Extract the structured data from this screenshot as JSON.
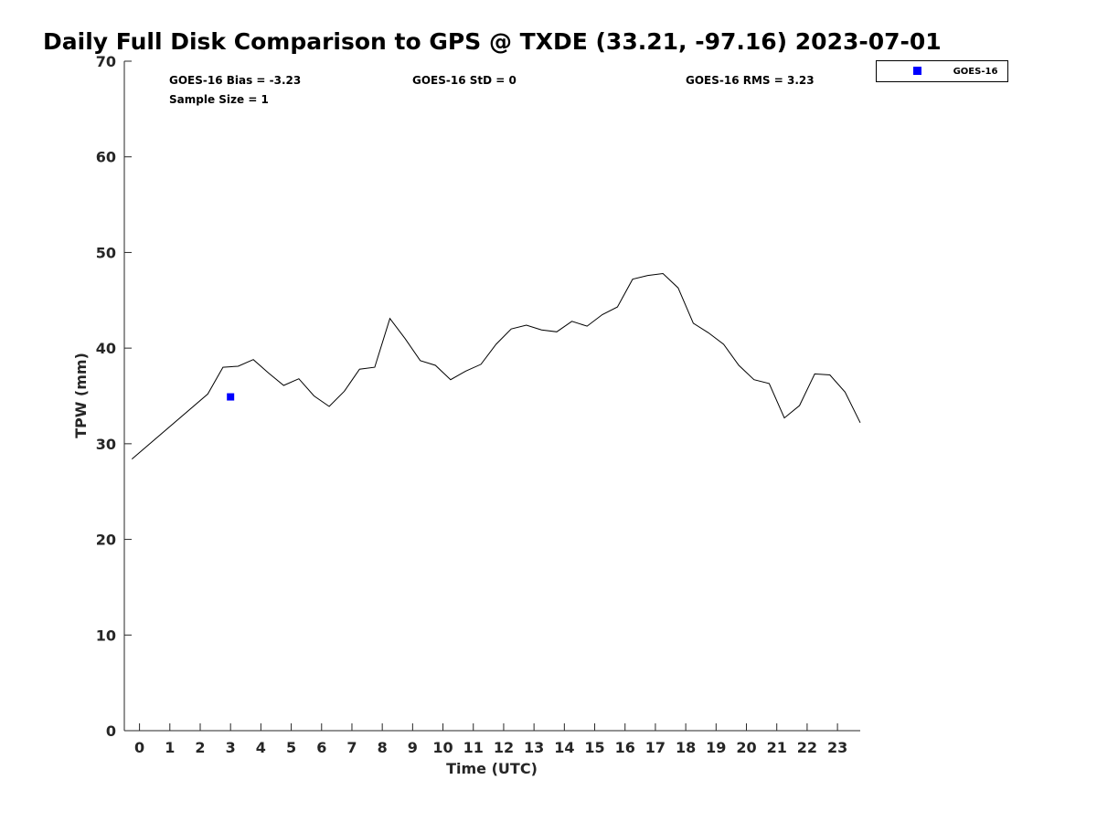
{
  "chart_data": {
    "type": "line",
    "title": "Daily Full Disk Comparison to GPS @ TXDE (33.21, -97.16) 2023-07-01",
    "xlabel": "Time (UTC)",
    "ylabel": "TPW (mm)",
    "xlim": [
      -0.5,
      23.75
    ],
    "ylim": [
      0,
      70
    ],
    "x_ticks": [
      "0",
      "1",
      "2",
      "3",
      "4",
      "5",
      "6",
      "7",
      "8",
      "9",
      "10",
      "11",
      "12",
      "13",
      "14",
      "15",
      "16",
      "17",
      "18",
      "19",
      "20",
      "21",
      "22",
      "23"
    ],
    "y_ticks": [
      "0",
      "10",
      "20",
      "30",
      "40",
      "50",
      "60",
      "70"
    ],
    "grid": false,
    "legend_position": "top-right, outside plot",
    "stats": [
      "GOES-16 Bias = -3.23",
      "GOES-16 StD = 0",
      "GOES-16 RMS = 3.23",
      "Sample Size = 1"
    ],
    "series": [
      {
        "color": "#000000",
        "x": [
          -0.25,
          2.25,
          2.75,
          3.25,
          3.75,
          4.25,
          4.75,
          5.25,
          5.75,
          6.25,
          6.75,
          7.25,
          7.75,
          8.25,
          8.75,
          9.25,
          9.75,
          10.25,
          10.75,
          11.25,
          11.75,
          12.25,
          12.75,
          13.25,
          13.75,
          14.25,
          14.75,
          15.25,
          15.75,
          16.25,
          16.75,
          17.25,
          17.75,
          18.25,
          18.75,
          19.25,
          19.75,
          20.25,
          20.75,
          21.25,
          21.75,
          22.25,
          22.75,
          23.25,
          23.75
        ],
        "y": [
          28.4,
          35.2,
          38.0,
          38.1,
          38.8,
          37.4,
          36.1,
          36.8,
          35.0,
          33.9,
          35.5,
          37.8,
          38.0,
          43.1,
          41.0,
          38.7,
          38.2,
          36.7,
          37.6,
          38.3,
          40.4,
          42.0,
          42.4,
          41.9,
          41.7,
          42.8,
          42.3,
          43.5,
          44.3,
          47.2,
          47.6,
          47.8,
          46.3,
          42.6,
          41.6,
          40.4,
          38.2,
          36.7,
          36.3,
          32.7,
          34.0,
          37.3,
          37.2,
          35.4,
          32.2
        ]
      },
      {
        "name": "GOES-16",
        "color": "#0000ff",
        "marker": "square",
        "x": [
          3.0
        ],
        "y": [
          34.9
        ]
      }
    ]
  }
}
